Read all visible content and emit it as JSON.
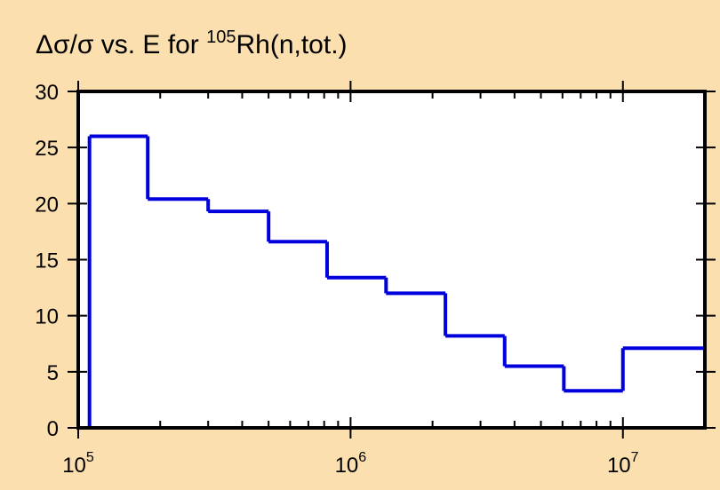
{
  "chart_data": {
    "type": "line",
    "step": true,
    "title": {
      "prefix": "Δσ/σ vs. E for ",
      "superscript": "105",
      "suffix": "Rh(n,tot.)"
    },
    "xlabel": "",
    "ylabel": "",
    "x_scale": "log",
    "xlim": [
      100000,
      20000000
    ],
    "ylim": [
      0,
      30
    ],
    "grid": false,
    "x_ticks": [
      {
        "value": 100000,
        "base": "10",
        "exp": "5"
      },
      {
        "value": 1000000,
        "base": "10",
        "exp": "6"
      },
      {
        "value": 10000000,
        "base": "10",
        "exp": "7"
      }
    ],
    "y_ticks": [
      {
        "value": 0,
        "label": "0"
      },
      {
        "value": 5,
        "label": "5"
      },
      {
        "value": 10,
        "label": "10"
      },
      {
        "value": 15,
        "label": "15"
      },
      {
        "value": 20,
        "label": "20"
      },
      {
        "value": 25,
        "label": "25"
      },
      {
        "value": 30,
        "label": "30"
      }
    ],
    "series": [
      {
        "color": "#0000dd",
        "bins": [
          {
            "x0": 110000,
            "x1": 180000,
            "y": 26.0
          },
          {
            "x0": 180000,
            "x1": 300000,
            "y": 20.4
          },
          {
            "x0": 300000,
            "x1": 500000,
            "y": 19.3
          },
          {
            "x0": 500000,
            "x1": 820000,
            "y": 16.6
          },
          {
            "x0": 820000,
            "x1": 1350000,
            "y": 13.4
          },
          {
            "x0": 1350000,
            "x1": 2230000,
            "y": 12.0
          },
          {
            "x0": 2230000,
            "x1": 3680000,
            "y": 8.2
          },
          {
            "x0": 3680000,
            "x1": 6070000,
            "y": 5.5
          },
          {
            "x0": 6070000,
            "x1": 10000000,
            "y": 3.3
          },
          {
            "x0": 10000000,
            "x1": 20000000,
            "y": 7.1
          }
        ]
      }
    ]
  },
  "colors": {
    "background": "#fbdfae",
    "plot_area": "#ffffff",
    "frame": "#000000"
  }
}
